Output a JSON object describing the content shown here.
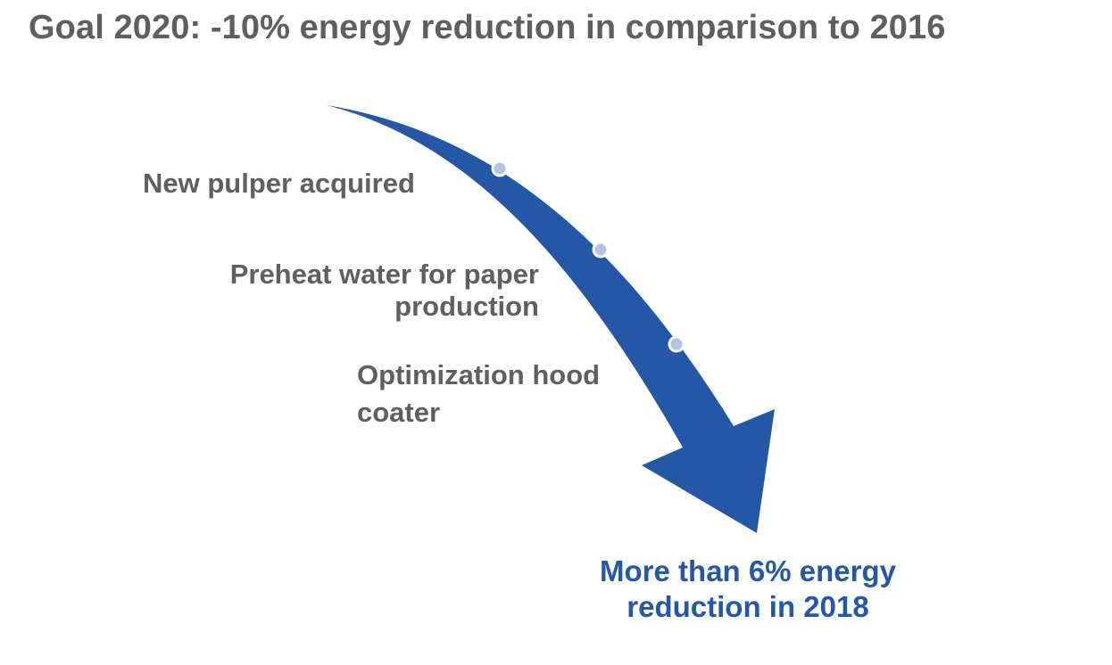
{
  "title": "Goal 2020: -10% energy reduction in comparison to 2016",
  "milestones": [
    {
      "label": "New pulper acquired"
    },
    {
      "label": "Preheat water for paper production"
    },
    {
      "label": "Optimization hood coater"
    }
  ],
  "result": "More than 6% energy reduction in 2018",
  "colors": {
    "title_text": "#5f5f5f",
    "milestone_text": "#5f5f5f",
    "arrow_fill": "#2457a6",
    "marker_fill": "#b4c3de",
    "marker_stroke": "#ffffff",
    "result_text": "#2457a6"
  }
}
